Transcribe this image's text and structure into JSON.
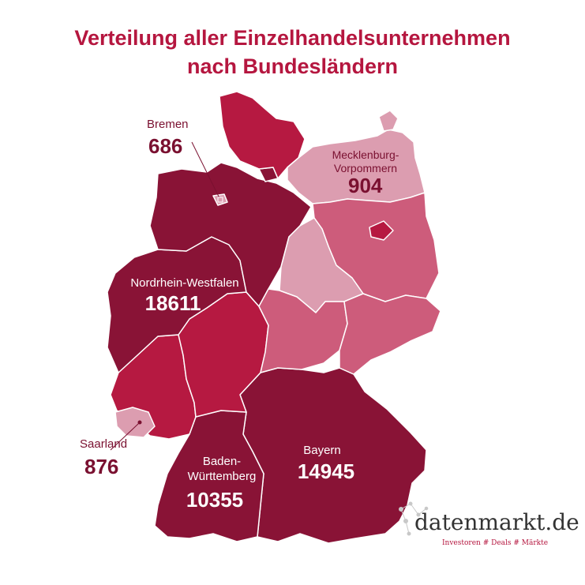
{
  "title": {
    "line1": "Verteilung aller Einzelhandelsunternehmen",
    "line2": "nach Bundesländern"
  },
  "colors": {
    "dark": "#891336",
    "medium": "#b61941",
    "pink": "#cd5c7b",
    "light": "#dc9db0",
    "title": "#b5163f"
  },
  "labels": {
    "bremen": {
      "name": "Bremen",
      "value": "686"
    },
    "mv": {
      "name_line1": "Mecklenburg-",
      "name_line2": "Vorpommern",
      "value": "904"
    },
    "nrw": {
      "name": "Nordrhein-Westfalen",
      "value": "18611"
    },
    "saarland": {
      "name": "Saarland",
      "value": "876"
    },
    "bw": {
      "name_line1": "Baden-",
      "name_line2": "Württemberg",
      "value": "10355"
    },
    "bayern": {
      "name": "Bayern",
      "value": "14945"
    }
  },
  "logo": {
    "name": "datenmarkt.de",
    "tagline": "Investoren # Deals # Märkte"
  }
}
